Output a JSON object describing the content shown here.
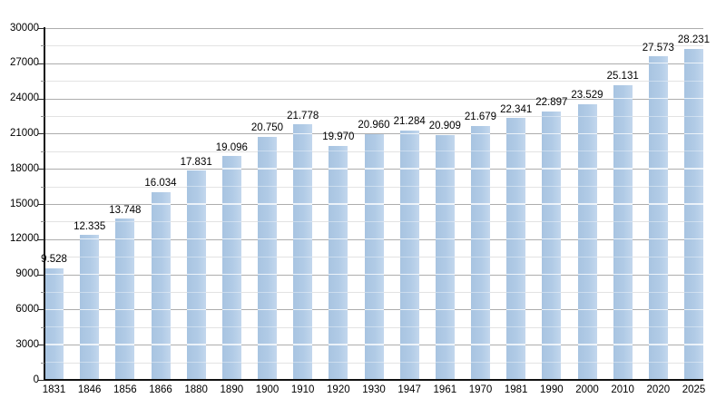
{
  "chart_data": {
    "type": "bar",
    "title": "",
    "xlabel": "",
    "ylabel": "",
    "categories": [
      "1831",
      "1846",
      "1856",
      "1866",
      "1880",
      "1890",
      "1900",
      "1910",
      "1920",
      "1930",
      "1947",
      "1961",
      "1970",
      "1981",
      "1990",
      "2000",
      "2010",
      "2020",
      "2025"
    ],
    "values": [
      9528,
      12335,
      13748,
      16034,
      17831,
      19096,
      20750,
      21778,
      19970,
      20960,
      21284,
      20909,
      21679,
      22341,
      22897,
      23529,
      25131,
      27573,
      28231
    ],
    "value_labels": [
      "9.528",
      "12.335",
      "13.748",
      "16.034",
      "17.831",
      "19.096",
      "20.750",
      "21.778",
      "19.970",
      "20.960",
      "21.284",
      "20.909",
      "21.679",
      "22.341",
      "22.897",
      "23.529",
      "25.131",
      "27.573",
      "28.231"
    ],
    "ylim": [
      0,
      30000
    ],
    "y_major_step": 3000,
    "y_minor_step": 1500,
    "y_tick_labels": [
      "0",
      "3000",
      "6000",
      "9000",
      "12000",
      "15000",
      "18000",
      "21000",
      "24000",
      "27000",
      "30000"
    ],
    "grid": "horizontal-major-and-minor",
    "legend_position": "none",
    "colors": {
      "bar_fill": "#a8c4e1",
      "bar_fill_mid": "#b1cbe6",
      "bar_fill_edge": "#c3d7ed",
      "major_gridline": "#adadad",
      "minor_gridline": "#e3e3e3",
      "axis": "#111111",
      "text": "#000000",
      "background": "#ffffff"
    }
  }
}
